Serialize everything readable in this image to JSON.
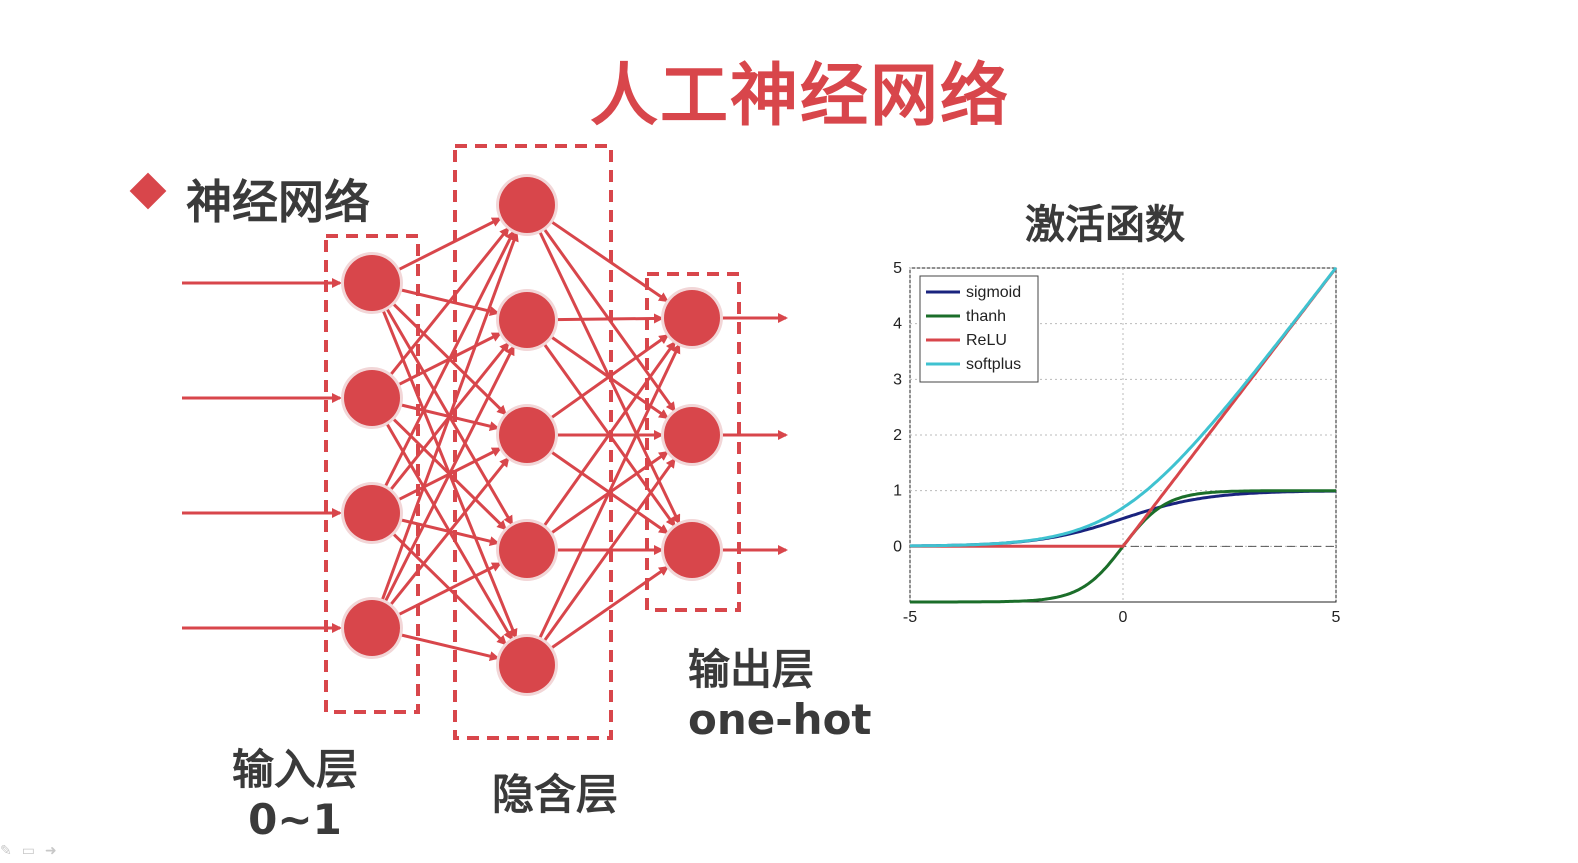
{
  "title": "人工神经网络",
  "section": "神经网络",
  "labels": {
    "input": [
      "输入层",
      "0~1"
    ],
    "hidden": "隐含层",
    "output": [
      "输出层",
      "one-hot"
    ]
  },
  "network": {
    "layers": [
      4,
      5,
      3
    ],
    "color": "#d8464b"
  },
  "activation": {
    "title": "激活函数"
  },
  "chart_data": {
    "type": "line",
    "title": "激活函数",
    "xlim": [
      -5,
      5
    ],
    "ylim": [
      -1,
      5
    ],
    "xticks": [
      -5,
      0,
      5
    ],
    "yticks": [
      0,
      1,
      2,
      3,
      4,
      5
    ],
    "grid": true,
    "legend_position": "top-left",
    "x": [
      -5,
      -4,
      -3,
      -2,
      -1,
      -0.5,
      0,
      0.5,
      1,
      1.5,
      2,
      3,
      4,
      5
    ],
    "series": [
      {
        "name": "sigmoid",
        "color": "#1a237e",
        "values": [
          0.007,
          0.018,
          0.047,
          0.119,
          0.269,
          0.378,
          0.5,
          0.622,
          0.731,
          0.818,
          0.881,
          0.953,
          0.982,
          0.993
        ]
      },
      {
        "name": "thanh",
        "color": "#1b6e2a",
        "values": [
          -1.0,
          -0.999,
          -0.995,
          -0.964,
          -0.762,
          -0.462,
          0.0,
          0.462,
          0.762,
          0.905,
          0.964,
          0.995,
          0.999,
          1.0
        ]
      },
      {
        "name": "ReLU",
        "color": "#d8464b",
        "values": [
          0,
          0,
          0,
          0,
          0,
          0,
          0,
          0.5,
          1,
          1.5,
          2,
          3,
          4,
          5
        ]
      },
      {
        "name": "softplus",
        "color": "#3fc2d0",
        "values": [
          0.007,
          0.018,
          0.049,
          0.127,
          0.313,
          0.474,
          0.693,
          0.974,
          1.313,
          1.701,
          2.127,
          3.049,
          4.018,
          5.007
        ]
      }
    ]
  }
}
